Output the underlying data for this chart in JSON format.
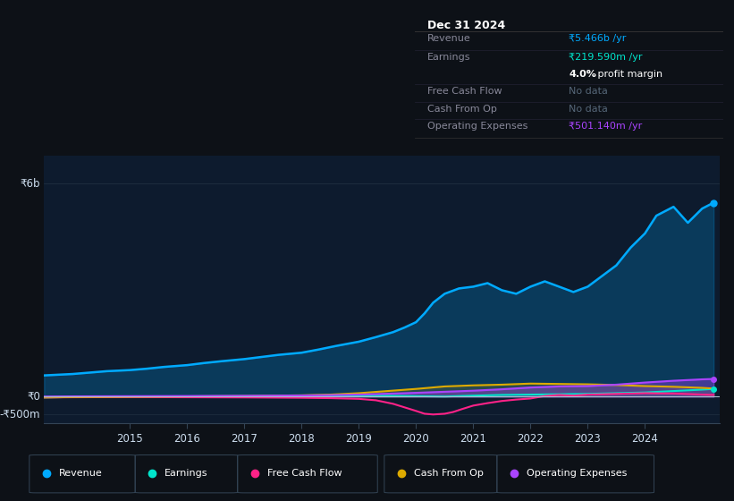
{
  "bg_color": "#0d1117",
  "plot_bg_color": "#0d1b2e",
  "revenue_color": "#00aaff",
  "earnings_color": "#00e5cc",
  "fcf_color": "#ff2288",
  "cashop_color": "#ddaa00",
  "opex_color": "#aa44ff",
  "title_box": {
    "date": "Dec 31 2024",
    "revenue_label": "Revenue",
    "revenue_value": "₹5.466b /yr",
    "earnings_label": "Earnings",
    "earnings_value": "₹219.590m /yr",
    "profit_margin": "4.0%",
    "profit_margin_suffix": " profit margin",
    "fcf_label": "Free Cash Flow",
    "fcf_value": "No data",
    "cashop_label": "Cash From Op",
    "cashop_value": "No data",
    "opex_label": "Operating Expenses",
    "opex_value": "₹501.140m /yr"
  },
  "ytick_labels": [
    "₹6b",
    "₹0",
    "-₹500m"
  ],
  "ytick_values": [
    6000,
    0,
    -500
  ],
  "ylim": [
    -750,
    6800
  ],
  "xlim": [
    2013.5,
    2025.3
  ],
  "xtick_labels": [
    "2015",
    "2016",
    "2017",
    "2018",
    "2019",
    "2020",
    "2021",
    "2022",
    "2023",
    "2024"
  ],
  "xtick_positions": [
    2015,
    2016,
    2017,
    2018,
    2019,
    2020,
    2021,
    2022,
    2023,
    2024
  ],
  "legend_items": [
    "Revenue",
    "Earnings",
    "Free Cash Flow",
    "Cash From Op",
    "Operating Expenses"
  ],
  "legend_colors": [
    "#00aaff",
    "#00e5cc",
    "#ff2288",
    "#ddaa00",
    "#aa44ff"
  ],
  "revenue_x": [
    2013.5,
    2014.0,
    2014.3,
    2014.6,
    2015.0,
    2015.3,
    2015.6,
    2016.0,
    2016.3,
    2016.6,
    2017.0,
    2017.3,
    2017.6,
    2018.0,
    2018.3,
    2018.6,
    2019.0,
    2019.3,
    2019.6,
    2019.8,
    2020.0,
    2020.15,
    2020.3,
    2020.5,
    2020.75,
    2021.0,
    2021.25,
    2021.5,
    2021.75,
    2022.0,
    2022.25,
    2022.5,
    2022.75,
    2023.0,
    2023.25,
    2023.5,
    2023.75,
    2024.0,
    2024.2,
    2024.5,
    2024.75,
    2025.0,
    2025.2
  ],
  "revenue_y": [
    600,
    640,
    680,
    720,
    750,
    790,
    840,
    890,
    950,
    1000,
    1060,
    1120,
    1180,
    1240,
    1330,
    1430,
    1550,
    1680,
    1820,
    1950,
    2100,
    2350,
    2650,
    2900,
    3050,
    3100,
    3200,
    3000,
    2900,
    3100,
    3250,
    3100,
    2950,
    3100,
    3400,
    3700,
    4200,
    4600,
    5100,
    5350,
    4900,
    5300,
    5466
  ],
  "earnings_x": [
    2013.5,
    2014.0,
    2015.0,
    2016.0,
    2017.0,
    2018.0,
    2019.0,
    2019.5,
    2020.0,
    2020.5,
    2021.0,
    2021.5,
    2022.0,
    2022.5,
    2023.0,
    2023.5,
    2024.0,
    2024.5,
    2025.0,
    2025.2
  ],
  "earnings_y": [
    -20,
    -10,
    5,
    10,
    15,
    20,
    20,
    25,
    15,
    5,
    30,
    50,
    60,
    70,
    80,
    100,
    120,
    160,
    200,
    220
  ],
  "fcf_x": [
    2013.5,
    2014.0,
    2015.0,
    2016.0,
    2017.0,
    2018.0,
    2018.5,
    2019.0,
    2019.3,
    2019.6,
    2019.9,
    2020.0,
    2020.15,
    2020.3,
    2020.5,
    2020.65,
    2020.8,
    2021.0,
    2021.25,
    2021.5,
    2021.75,
    2022.0,
    2022.25,
    2022.5,
    2022.75,
    2023.0,
    2023.5,
    2024.0,
    2024.5,
    2025.0,
    2025.2
  ],
  "fcf_y": [
    -20,
    -15,
    -10,
    -15,
    -20,
    -30,
    -40,
    -60,
    -100,
    -200,
    -350,
    -400,
    -480,
    -500,
    -480,
    -430,
    -350,
    -250,
    -180,
    -120,
    -80,
    -50,
    20,
    50,
    30,
    60,
    80,
    100,
    90,
    60,
    50
  ],
  "cashop_x": [
    2013.5,
    2014.0,
    2015.0,
    2016.0,
    2017.0,
    2018.0,
    2018.5,
    2019.0,
    2019.5,
    2020.0,
    2020.5,
    2021.0,
    2021.5,
    2022.0,
    2022.5,
    2023.0,
    2023.5,
    2024.0,
    2024.5,
    2025.0,
    2025.2
  ],
  "cashop_y": [
    -20,
    -10,
    0,
    10,
    20,
    40,
    60,
    100,
    160,
    220,
    290,
    320,
    340,
    370,
    360,
    350,
    330,
    300,
    280,
    250,
    230
  ],
  "opex_x": [
    2013.5,
    2014.0,
    2015.0,
    2016.0,
    2017.0,
    2018.0,
    2018.5,
    2019.0,
    2019.5,
    2020.0,
    2020.5,
    2021.0,
    2021.5,
    2022.0,
    2022.5,
    2023.0,
    2023.5,
    2024.0,
    2024.5,
    2025.0,
    2025.2
  ],
  "opex_y": [
    5,
    10,
    15,
    20,
    25,
    35,
    45,
    60,
    85,
    110,
    140,
    170,
    210,
    260,
    290,
    300,
    340,
    400,
    450,
    490,
    501
  ]
}
